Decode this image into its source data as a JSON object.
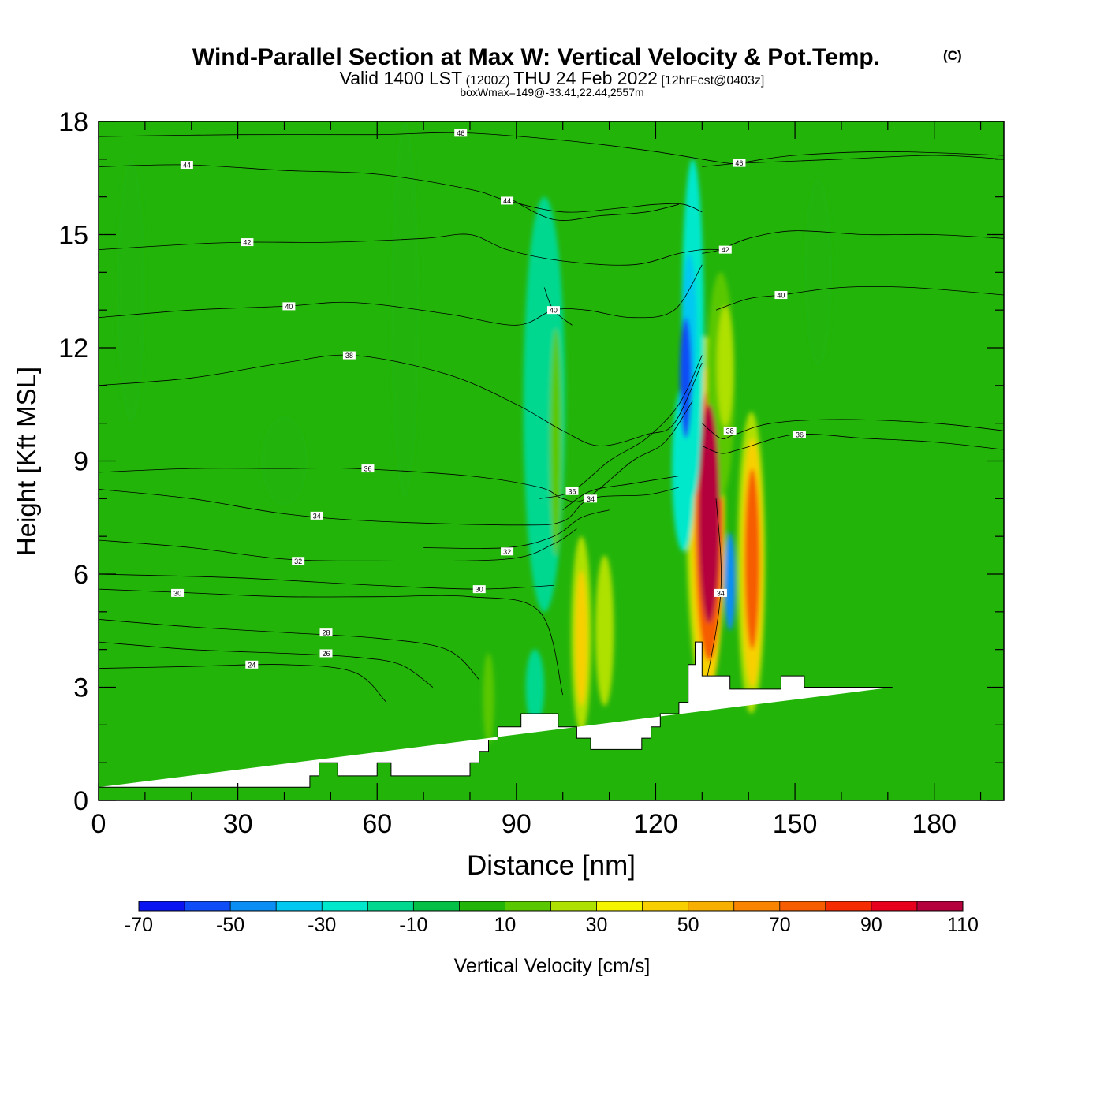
{
  "chart_data": {
    "type": "heatmap",
    "title": "Wind-Parallel Section at Max W: Vertical Velocity & Pot.Temp.",
    "title_mark": "(C)",
    "subtitle_parts": [
      "Valid 1400 LST",
      "(1200Z)",
      "THU 24 Feb 2022",
      "[12hrFcst@0403z]"
    ],
    "subtitle2": "boxWmax=149@-33.41,22.44,2557m",
    "xlabel": "Distance [nm]",
    "ylabel": "Height [Kft MSL]",
    "xlim": [
      0,
      195
    ],
    "ylim": [
      0,
      18
    ],
    "x_ticks": [
      "0",
      "30",
      "60",
      "90",
      "120",
      "150",
      "180"
    ],
    "y_ticks": [
      "0",
      "3",
      "6",
      "9",
      "12",
      "15",
      "18"
    ],
    "background_value": 5,
    "colorbar": {
      "label": "Vertical Velocity [cm/s]",
      "tick_labels": [
        "-70",
        "-50",
        "-30",
        "-10",
        "10",
        "30",
        "50",
        "70",
        "90",
        "110"
      ],
      "levels": [
        -70,
        -60,
        -50,
        -40,
        -30,
        -20,
        -10,
        0,
        10,
        20,
        30,
        40,
        50,
        60,
        70,
        80,
        90,
        100,
        110,
        120
      ],
      "colors": [
        "#0a14f0",
        "#0f4ef6",
        "#0a8ef4",
        "#00c8f0",
        "#00e8cc",
        "#00d890",
        "#05c046",
        "#23b40a",
        "#5ac800",
        "#aee000",
        "#f5f500",
        "#f8d000",
        "#f8b000",
        "#f88400",
        "#f65c00",
        "#f42c00",
        "#e6001e",
        "#b4003c"
      ]
    },
    "features": [
      {
        "x": 131.5,
        "y": 7.6,
        "rx": 2.3,
        "ry": 2.9,
        "value": 110
      },
      {
        "x": 131.5,
        "y": 7.3,
        "rx": 3.0,
        "ry": 3.6,
        "value": 75
      },
      {
        "x": 131.2,
        "y": 7.2,
        "rx": 3.6,
        "ry": 4.3,
        "value": 45
      },
      {
        "x": 130.8,
        "y": 7.5,
        "rx": 4.2,
        "ry": 4.8,
        "value": 25
      },
      {
        "x": 140.8,
        "y": 6.4,
        "rx": 1.6,
        "ry": 2.4,
        "value": 75
      },
      {
        "x": 140.8,
        "y": 6.3,
        "rx": 2.3,
        "ry": 3.3,
        "value": 45
      },
      {
        "x": 140.6,
        "y": 6.3,
        "rx": 3.0,
        "ry": 4.0,
        "value": 25
      },
      {
        "x": 104.0,
        "y": 4.3,
        "rx": 1.3,
        "ry": 1.8,
        "value": 45
      },
      {
        "x": 104.0,
        "y": 4.4,
        "rx": 2.2,
        "ry": 2.6,
        "value": 25
      },
      {
        "x": 109.0,
        "y": 4.5,
        "rx": 2.0,
        "ry": 2.0,
        "value": 25
      },
      {
        "x": 136.0,
        "y": 5.8,
        "rx": 1.2,
        "ry": 1.3,
        "value": -45
      },
      {
        "x": 126.5,
        "y": 11.2,
        "rx": 1.3,
        "ry": 1.6,
        "value": -55
      },
      {
        "x": 127.2,
        "y": 12.5,
        "rx": 1.6,
        "ry": 2.0,
        "value": -40
      },
      {
        "x": 128.0,
        "y": 12.5,
        "rx": 2.4,
        "ry": 4.5,
        "value": -25
      },
      {
        "x": 126.0,
        "y": 8.8,
        "rx": 2.5,
        "ry": 2.2,
        "value": -25
      },
      {
        "x": 96.0,
        "y": 10.5,
        "rx": 4.5,
        "ry": 5.5,
        "value": -15
      },
      {
        "x": 98.5,
        "y": 9.5,
        "rx": 1.2,
        "ry": 3.0,
        "value": 15
      },
      {
        "x": 135.0,
        "y": 11.5,
        "rx": 1.8,
        "ry": 1.6,
        "value": 25
      },
      {
        "x": 134.0,
        "y": 11.0,
        "rx": 3.0,
        "ry": 3.0,
        "value": 15
      },
      {
        "x": 94.0,
        "y": 3.0,
        "rx": 2.0,
        "ry": 1.0,
        "value": -15
      },
      {
        "x": 84.0,
        "y": 2.7,
        "rx": 1.2,
        "ry": 1.2,
        "value": 15
      },
      {
        "x": 7.0,
        "y": 13.5,
        "rx": 3.0,
        "ry": 3.5,
        "value": 0
      },
      {
        "x": 40.0,
        "y": 9.0,
        "rx": 5.0,
        "ry": 1.2,
        "value": 0
      },
      {
        "x": 66.0,
        "y": 13.0,
        "rx": 3.0,
        "ry": 5.0,
        "value": 0
      },
      {
        "x": 155.0,
        "y": 14.0,
        "rx": 3.0,
        "ry": 2.5,
        "value": 0
      }
    ],
    "theta_contours": [
      {
        "label": "24",
        "x": [
          0,
          20,
          40,
          55,
          62
        ],
        "y": [
          3.5,
          3.55,
          3.6,
          3.4,
          2.6
        ],
        "label_at": [
          33,
          3.6
        ]
      },
      {
        "label": "26",
        "x": [
          0,
          20,
          40,
          55,
          65,
          72
        ],
        "y": [
          4.2,
          4.0,
          3.9,
          3.8,
          3.6,
          3.0
        ],
        "label_at": [
          49,
          3.9
        ]
      },
      {
        "label": "28",
        "x": [
          0,
          20,
          40,
          60,
          75,
          82
        ],
        "y": [
          4.8,
          4.6,
          4.45,
          4.3,
          4.0,
          3.2
        ],
        "label_at": [
          49,
          4.45
        ]
      },
      {
        "label": "30",
        "x": [
          0,
          20,
          40,
          60,
          80,
          95,
          100
        ],
        "y": [
          5.6,
          5.5,
          5.4,
          5.4,
          5.4,
          5.0,
          2.8
        ],
        "label_at": [
          17,
          5.5
        ]
      },
      {
        "label": "30",
        "x": [
          0,
          30,
          60,
          82,
          98
        ],
        "y": [
          6.0,
          5.9,
          5.7,
          5.6,
          5.7
        ],
        "label_at": [
          82,
          5.6
        ]
      },
      {
        "label": "32",
        "x": [
          0,
          20,
          40,
          60,
          88,
          98,
          103
        ],
        "y": [
          6.9,
          6.7,
          6.4,
          6.35,
          6.4,
          6.8,
          7.2
        ],
        "label_at": [
          43,
          6.35
        ]
      },
      {
        "label": "32",
        "x": [
          70,
          88,
          98,
          104,
          110
        ],
        "y": [
          6.7,
          6.7,
          7.0,
          7.5,
          7.7
        ],
        "label_at": [
          88,
          6.6
        ]
      },
      {
        "label": "34",
        "x": [
          0,
          20,
          40,
          60,
          90,
          100,
          106,
          118,
          125
        ],
        "y": [
          8.25,
          8.0,
          7.6,
          7.4,
          7.3,
          7.4,
          8.0,
          8.1,
          8.3
        ],
        "label_at": [
          47,
          7.55
        ]
      },
      {
        "label": "34",
        "x": [
          100,
          106,
          115,
          125
        ],
        "y": [
          7.7,
          8.2,
          8.4,
          8.6
        ],
        "label_at": [
          106,
          8.0
        ]
      },
      {
        "label": "36",
        "x": [
          0,
          20,
          40,
          55,
          80,
          95,
          100,
          105,
          115,
          122,
          128
        ],
        "y": [
          8.7,
          8.8,
          8.8,
          8.8,
          8.6,
          8.3,
          8.0,
          8.0,
          9.0,
          9.5,
          10.6
        ],
        "label_at": [
          58,
          8.8
        ]
      },
      {
        "label": "36",
        "x": [
          95,
          102,
          110,
          118,
          125,
          130
        ],
        "y": [
          8.0,
          8.2,
          9.0,
          9.6,
          10.5,
          11.8
        ],
        "label_at": [
          102,
          8.2
        ]
      },
      {
        "label": "38",
        "x": [
          0,
          20,
          40,
          55,
          75,
          90,
          100,
          108,
          118,
          124,
          130
        ],
        "y": [
          11.0,
          11.2,
          11.6,
          11.8,
          11.3,
          10.5,
          9.8,
          9.4,
          9.7,
          10.0,
          11.6
        ],
        "label_at": [
          54,
          11.8
        ]
      },
      {
        "label": "38",
        "x": [
          130,
          134,
          137,
          145,
          160,
          180,
          195
        ],
        "y": [
          10.0,
          9.6,
          9.7,
          10.0,
          10.1,
          10.0,
          9.8
        ],
        "label_at": [
          136,
          9.8
        ]
      },
      {
        "label": "36",
        "x": [
          130,
          134,
          138,
          150,
          165,
          180,
          195
        ],
        "y": [
          9.4,
          9.2,
          9.3,
          9.7,
          9.6,
          9.5,
          9.3
        ],
        "label_at": [
          151,
          9.7
        ]
      },
      {
        "label": "40",
        "x": [
          0,
          20,
          40,
          55,
          75,
          90,
          98,
          105,
          115,
          124,
          130
        ],
        "y": [
          12.8,
          13.0,
          13.1,
          13.2,
          12.9,
          12.6,
          13.0,
          13.0,
          12.8,
          13.0,
          14.2
        ],
        "label_at": [
          41,
          13.1
        ]
      },
      {
        "label": "40",
        "x": [
          96,
          98,
          102
        ],
        "y": [
          13.6,
          13.0,
          12.6
        ],
        "label_at": [
          98,
          13.0
        ]
      },
      {
        "label": "40",
        "x": [
          133,
          140,
          147,
          160,
          175,
          195
        ],
        "y": [
          13.0,
          13.3,
          13.4,
          13.6,
          13.6,
          13.4
        ],
        "label_at": [
          147,
          13.4
        ]
      },
      {
        "label": "42",
        "x": [
          0,
          20,
          32,
          50,
          70,
          80,
          88,
          100,
          115,
          125,
          130,
          134
        ],
        "y": [
          14.6,
          14.75,
          14.8,
          14.8,
          14.9,
          15.0,
          14.6,
          14.3,
          14.2,
          14.5,
          14.6,
          14.6
        ],
        "label_at": [
          32,
          14.8
        ]
      },
      {
        "label": "42",
        "x": [
          130,
          134,
          140,
          150,
          165,
          180,
          195
        ],
        "y": [
          14.5,
          14.6,
          14.9,
          15.1,
          15.0,
          15.0,
          14.9
        ],
        "label_at": [
          135,
          14.6
        ]
      },
      {
        "label": "44",
        "x": [
          0,
          19,
          40,
          60,
          80,
          88,
          100,
          112,
          120,
          126,
          130
        ],
        "y": [
          16.8,
          16.85,
          16.7,
          16.6,
          16.2,
          15.9,
          15.6,
          15.7,
          15.8,
          15.8,
          15.6
        ],
        "label_at": [
          19,
          16.85
        ]
      },
      {
        "label": "44",
        "x": [
          88,
          98,
          108,
          118,
          125
        ],
        "y": [
          16.0,
          15.4,
          15.5,
          15.6,
          15.8
        ],
        "label_at": [
          88,
          15.9
        ]
      },
      {
        "label": "46",
        "x": [
          0,
          30,
          60,
          78,
          100,
          120,
          135,
          140,
          160,
          180,
          195
        ],
        "y": [
          17.6,
          17.65,
          17.65,
          17.7,
          17.5,
          17.2,
          16.9,
          16.9,
          17.0,
          17.1,
          17.0
        ],
        "label_at": [
          78,
          17.7
        ]
      },
      {
        "label": "46",
        "x": [
          130,
          138,
          150,
          170,
          195
        ],
        "y": [
          16.8,
          16.9,
          17.1,
          17.2,
          17.1
        ],
        "label_at": [
          138,
          16.9
        ]
      },
      {
        "label": "34",
        "x": [
          131,
          133,
          134,
          134,
          133
        ],
        "y": [
          3.2,
          4.5,
          5.5,
          6.5,
          8.0
        ],
        "label_at": [
          134,
          5.5
        ]
      }
    ],
    "terrain": {
      "x": [
        0,
        45.5,
        45.5,
        47.5,
        47.5,
        51.5,
        51.5,
        60,
        60,
        63,
        63,
        69,
        69,
        80,
        80,
        82,
        82,
        84,
        84,
        86,
        86,
        91,
        91,
        99,
        99,
        103,
        103,
        106,
        106,
        117,
        117,
        119,
        119,
        121,
        121,
        125,
        125,
        127,
        127,
        128.5,
        128.5,
        130,
        130,
        136,
        136,
        147,
        147,
        152,
        152,
        171,
        171,
        195
      ],
      "y": [
        0.35,
        0.35,
        0.65,
        0.65,
        1.0,
        1.0,
        0.65,
        0.65,
        1.0,
        1.0,
        0.65,
        0.65,
        0.65,
        0.65,
        1.0,
        1.0,
        1.3,
        1.3,
        1.6,
        1.6,
        1.95,
        1.95,
        2.3,
        2.3,
        1.95,
        1.95,
        1.65,
        1.65,
        1.35,
        1.35,
        1.65,
        1.65,
        1.95,
        1.95,
        2.3,
        2.3,
        2.6,
        2.6,
        3.6,
        3.6,
        4.2,
        4.2,
        3.3,
        3.3,
        2.95,
        2.95,
        3.3,
        3.3,
        3.0,
        3.0,
        3.0
      ]
    }
  }
}
